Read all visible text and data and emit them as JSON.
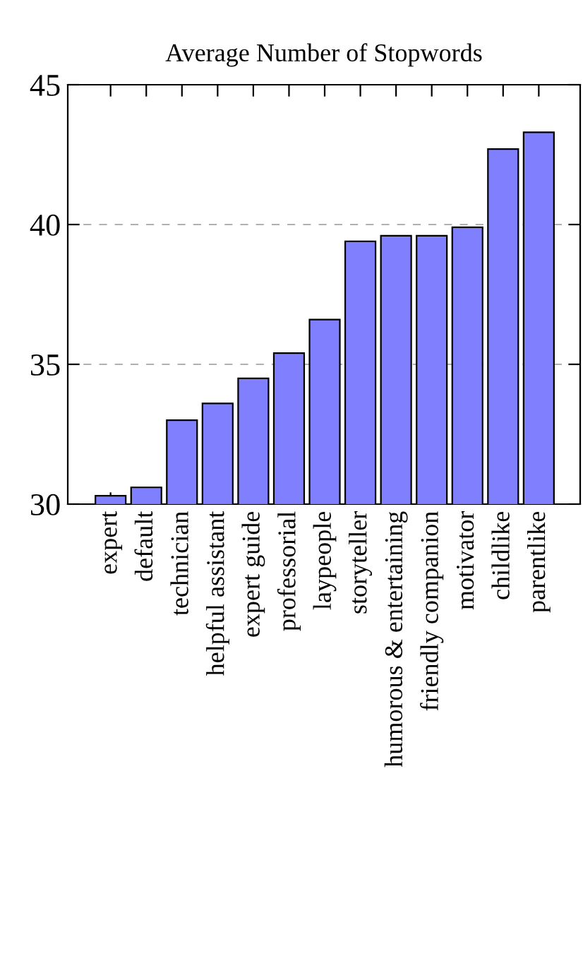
{
  "chart_data": {
    "type": "bar",
    "title": "Average Number of Stopwords",
    "categories": [
      "expert",
      "default",
      "technician",
      "helpful assistant",
      "expert guide",
      "professorial",
      "laypeople",
      "storyteller",
      "humorous & entertaining",
      "friendly companion",
      "motivator",
      "childlike",
      "parentlike"
    ],
    "values": [
      30.3,
      30.6,
      33.0,
      33.6,
      34.5,
      35.4,
      36.6,
      39.4,
      39.6,
      39.6,
      39.9,
      42.7,
      43.3
    ],
    "color": "#8080ff",
    "ylim": [
      30,
      45
    ],
    "yticks": [
      30,
      35,
      40,
      45
    ],
    "grid": "y"
  }
}
